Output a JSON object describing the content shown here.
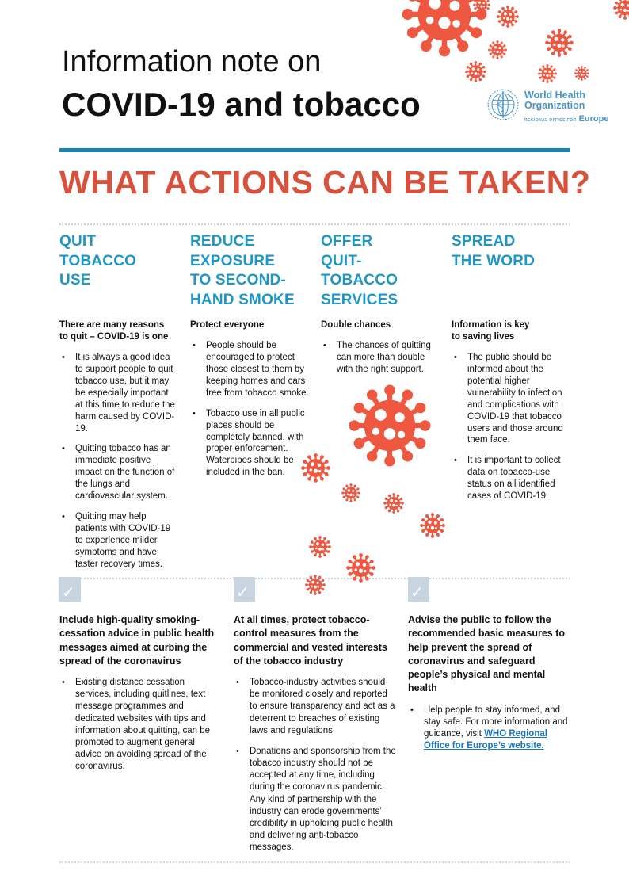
{
  "title": {
    "line1": "Information note on",
    "line2": "COVID-19 and tobacco"
  },
  "logo": {
    "org_line1": "World Health",
    "org_line2": "Organization",
    "region_prefix": "REGIONAL OFFICE FOR",
    "region": "Europe"
  },
  "main_heading": "WHAT ACTIONS CAN BE TAKEN?",
  "columns": [
    {
      "header": "QUIT\nTOBACCO\nUSE",
      "subheading": "There are many reasons\nto quit – COVID-19 is one",
      "bullets": [
        "It is always a good idea to support people to quit tobacco use, but it may be especially important at this time to reduce the harm caused by COVID-19.",
        "Quitting tobacco has an immediate positive impact on the function of the lungs and cardiovascular system.",
        "Quitting may help patients with COVID-19 to experience milder symptoms and have faster recovery times."
      ]
    },
    {
      "header": "REDUCE\nEXPOSURE\nTO SECOND-\nHAND SMOKE",
      "subheading": "Protect everyone",
      "bullets": [
        "People should be encouraged to protect those closest to them by keeping homes and cars free from tobacco smoke.",
        "Tobacco use in all public places should be completely banned, with proper enforcement. Waterpipes should be included in the ban."
      ]
    },
    {
      "header": "OFFER\nQUIT-\nTOBACCO\nSERVICES",
      "subheading": "Double chances",
      "bullets": [
        "The chances of quitting can more than double with the right support."
      ]
    },
    {
      "header": "SPREAD\nTHE WORD",
      "subheading": "Information is key\nto saving lives",
      "bullets": [
        "The public should be informed about the potential higher vulnerability to infection and complications with COVID-19 that tobacco users and those around them face.",
        "It is important to collect data on tobacco-use status on all identified cases of COVID-19."
      ]
    }
  ],
  "bottom_sections": [
    {
      "heading": "Include high-quality smoking-cessation advice in public health messages aimed at curbing the spread of the coronavirus",
      "bullets": [
        "Existing distance cessation services, including quitlines, text message programmes and dedicated websites with tips and information about quitting, can be promoted to augment general advice on avoiding spread of the coronavirus."
      ]
    },
    {
      "heading": "At all times, protect tobacco-control measures from the commercial and vested interests of the tobacco industry",
      "bullets": [
        "Tobacco-industry activities should be monitored closely and reported to ensure transparency and act as a deterrent to breaches of existing laws and regulations.",
        "Donations and sponsorship from the tobacco industry should not be accepted at any time, including during the coronavirus pandemic. Any kind of partnership with the industry can erode governments’ credibility in upholding public health and delivering anti-tobacco messages."
      ]
    },
    {
      "heading": "Advise the public to follow the recommended basic measures to help prevent the spread of coronavirus and safeguard people’s physical and mental health",
      "bullet_prefix": "Help people to stay informed, and stay safe. For more information and guidance, visit ",
      "link_text": "WHO Regional Office for Europe’s website."
    }
  ],
  "colors": {
    "heading_red": "#D7513C",
    "header_blue": "#1E96C8",
    "rule_blue": "#1484BA",
    "logo_blue": "#4C93C6",
    "virus_orange": "#EE5740",
    "checkbox_blue": "#C8D5E0",
    "link_blue": "#1B75BC"
  }
}
